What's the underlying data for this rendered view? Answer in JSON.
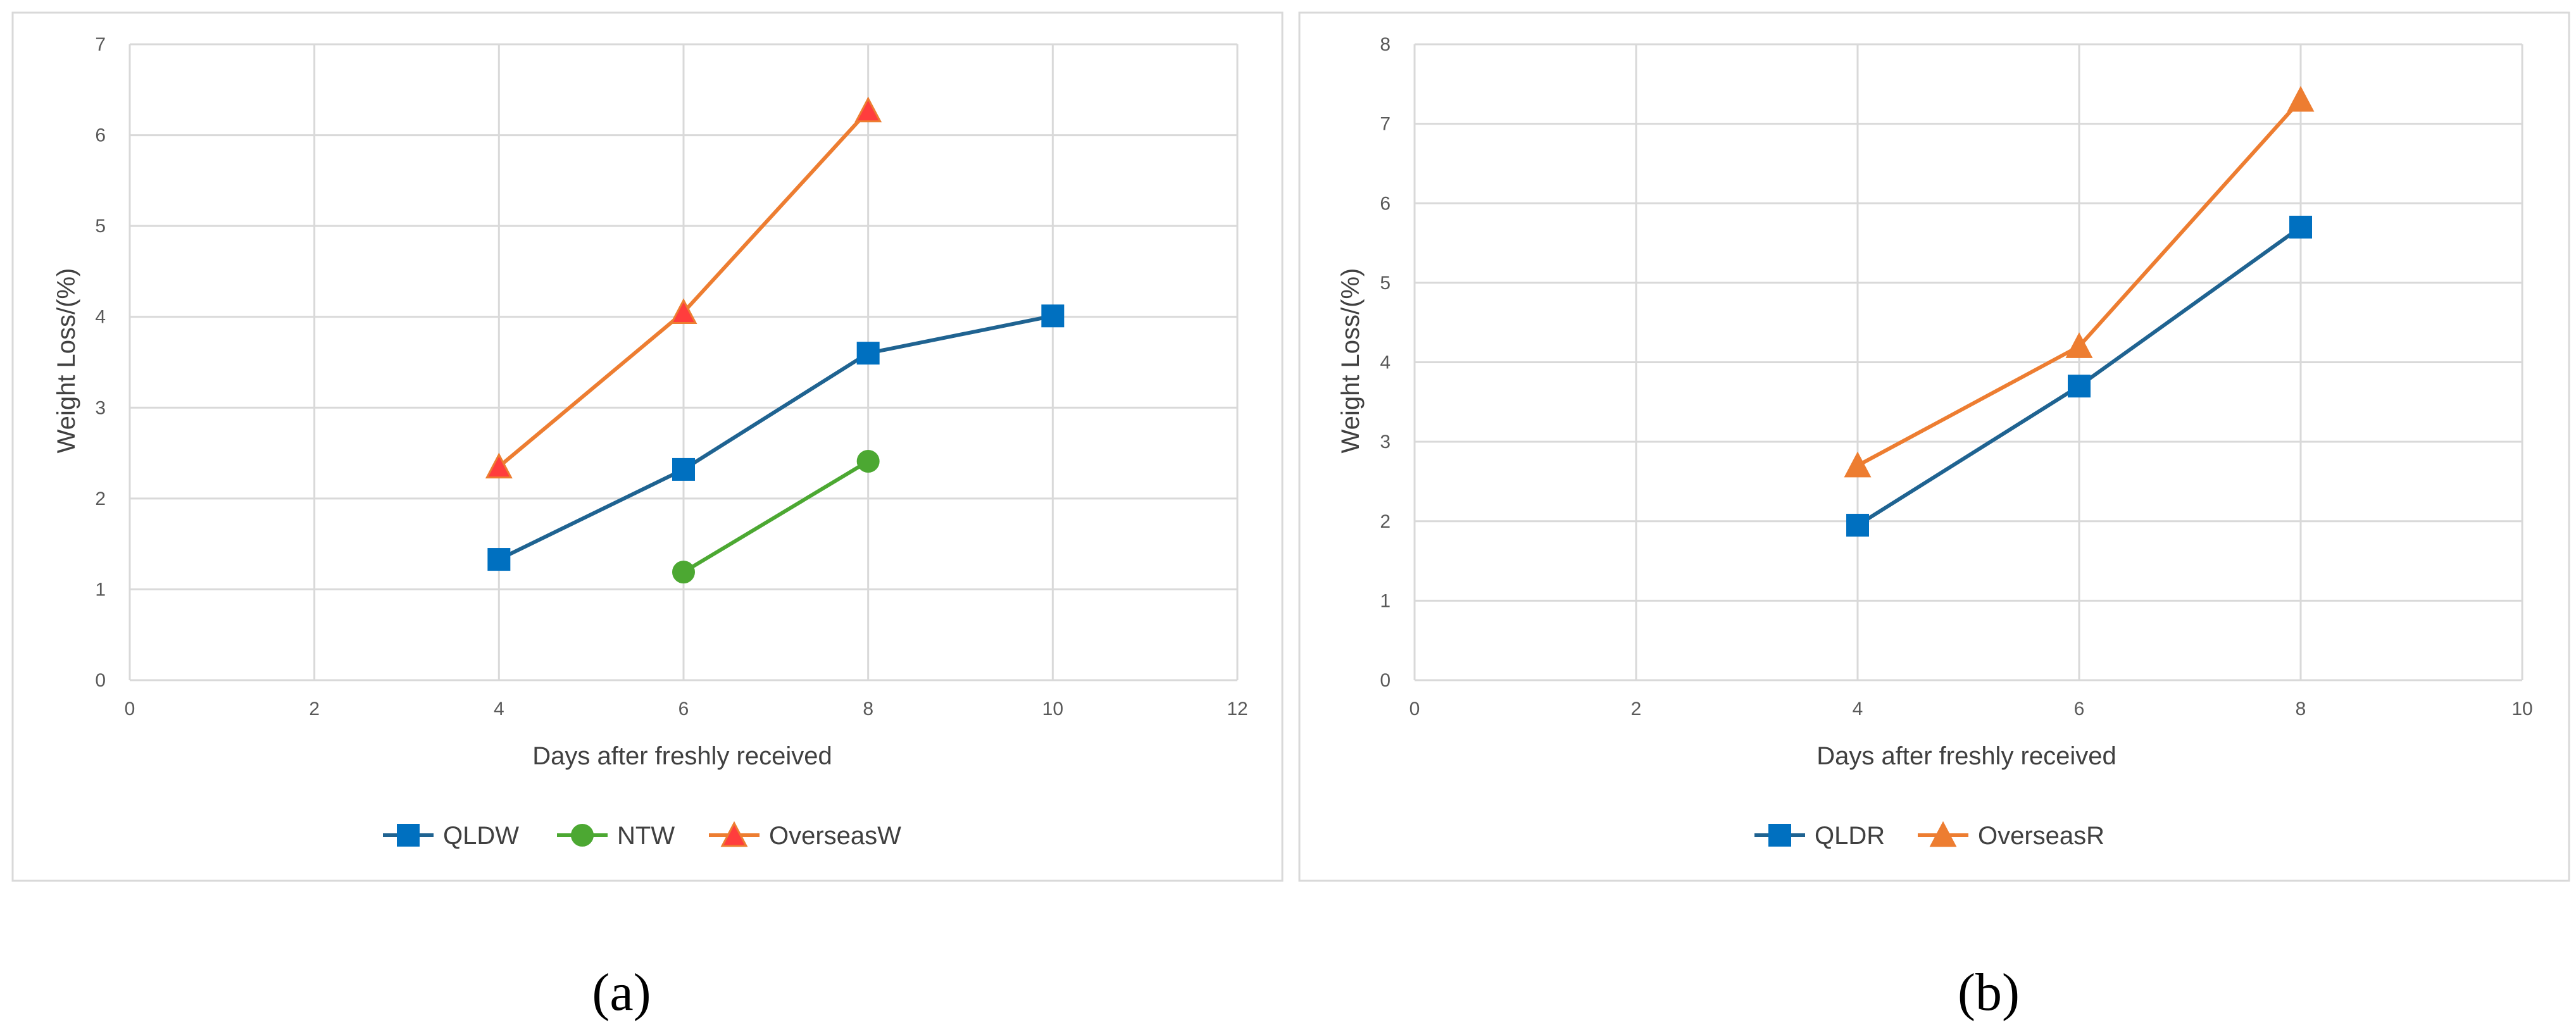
{
  "chart_data": [
    {
      "type": "scatter",
      "panel_label": "(a)",
      "xlabel": "Days after freshly received",
      "ylabel": "Weight Loss/(%)",
      "xlim": [
        0,
        12
      ],
      "ylim": [
        0,
        7
      ],
      "x_ticks": [
        0,
        2,
        4,
        6,
        8,
        10,
        12
      ],
      "y_ticks": [
        0,
        1,
        2,
        3,
        4,
        5,
        6,
        7
      ],
      "grid": true,
      "legend_position": "bottom",
      "series": [
        {
          "name": "QLDW",
          "color": "#1f6391",
          "marker": "square",
          "marker_color": "#0070c0",
          "x": [
            4,
            6,
            8,
            10
          ],
          "y": [
            1.33,
            2.32,
            3.6,
            4.01
          ]
        },
        {
          "name": "NTW",
          "color": "#4ca832",
          "marker": "circle",
          "marker_color": "#4ca832",
          "x": [
            6,
            8
          ],
          "y": [
            1.19,
            2.41
          ]
        },
        {
          "name": "OverseasW",
          "color": "#ed7d31",
          "marker": "triangle",
          "marker_color": "#ff3d3d",
          "x": [
            4,
            6,
            8
          ],
          "y": [
            2.35,
            4.05,
            6.27
          ]
        }
      ]
    },
    {
      "type": "scatter",
      "panel_label": "(b)",
      "xlabel": "Days after freshly received",
      "ylabel": "Weight Loss/(%)",
      "xlim": [
        0,
        10
      ],
      "ylim": [
        0,
        8
      ],
      "x_ticks": [
        0,
        2,
        4,
        6,
        8,
        10
      ],
      "y_ticks": [
        0,
        1,
        2,
        3,
        4,
        5,
        6,
        7,
        8
      ],
      "grid": true,
      "legend_position": "bottom",
      "series": [
        {
          "name": "QLDR",
          "color": "#1f6391",
          "marker": "square",
          "marker_color": "#0070c0",
          "x": [
            4,
            6,
            8
          ],
          "y": [
            1.95,
            3.7,
            5.7
          ]
        },
        {
          "name": "OverseasR",
          "color": "#ed7d31",
          "marker": "triangle",
          "marker_color": "#ed7d31",
          "x": [
            4,
            6,
            8
          ],
          "y": [
            2.7,
            4.2,
            7.3
          ]
        }
      ]
    }
  ]
}
